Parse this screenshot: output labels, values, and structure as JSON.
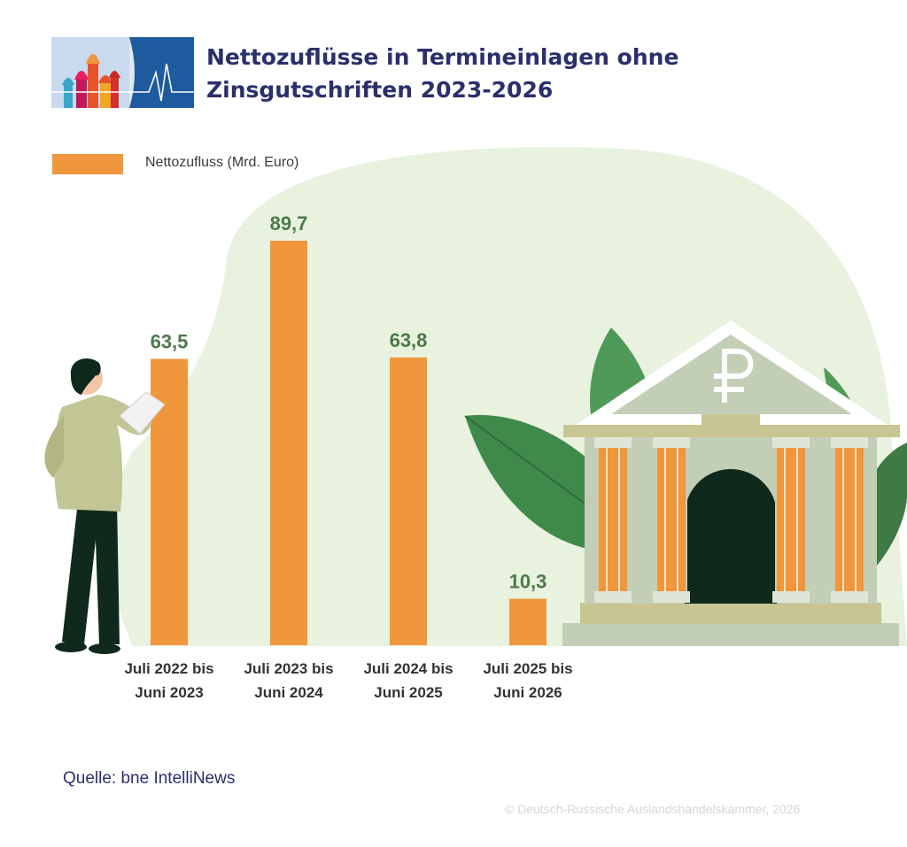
{
  "header": {
    "title": "Nettozuflüsse in Termineinlagen ohne Zinsgutschriften 2023-2026"
  },
  "colors": {
    "bar": "#f0963c",
    "value_label": "#4d7a4a",
    "title": "#2b2f6b",
    "background_blob": "#e8f2de"
  },
  "chart_data": {
    "type": "bar",
    "categories": [
      [
        "Juli 2022 bis",
        "Juni 2023"
      ],
      [
        "Juli 2023 bis",
        "Juni 2024"
      ],
      [
        "Juli 2024 bis",
        "Juni 2025"
      ],
      [
        "Juli 2025 bis",
        "Juni 2026"
      ]
    ],
    "series": [
      {
        "name": "Nettozufluss (Mrd. Euro)",
        "values": [
          63.5,
          89.7,
          63.8,
          10.3
        ],
        "labels": [
          "63,5",
          "89,7",
          "63,8",
          "10,3"
        ]
      }
    ],
    "legend": "top-left",
    "grid": false,
    "axes_visible": false,
    "ylim": [
      0,
      100
    ]
  },
  "footer": {
    "source": "Quelle: bne IntelliNews",
    "copyright": "© Deutsch-Russische Auslandshandelskammer, 2026"
  }
}
